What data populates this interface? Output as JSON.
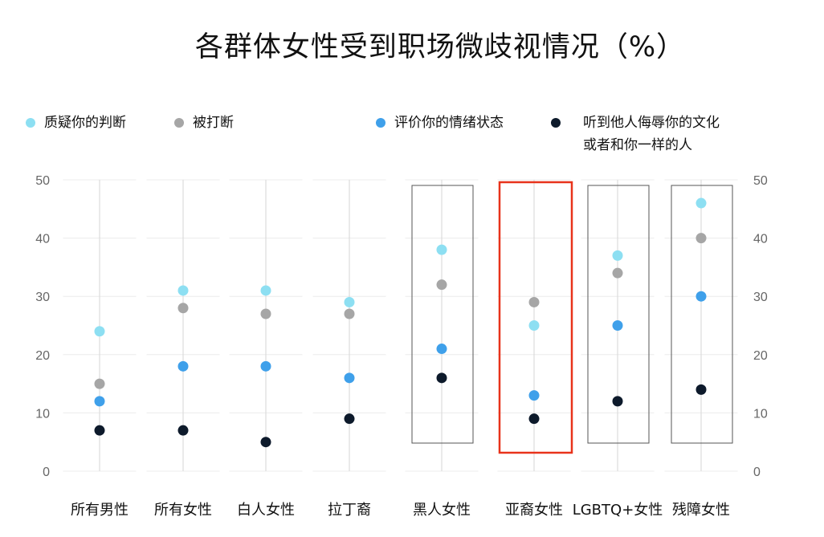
{
  "chart_data": {
    "type": "scatter",
    "title": "各群体女性受到职场微歧视情况（%）",
    "categories": [
      "所有男性",
      "所有女性",
      "白人女性",
      "拉丁裔",
      "黑人女性",
      "亚裔女性",
      "LGBTQ+女性",
      "残障女性"
    ],
    "ylim": [
      0,
      50
    ],
    "yticks": [
      0,
      10,
      20,
      30,
      40,
      50
    ],
    "grid": true,
    "legend_position": "top",
    "series": [
      {
        "name": "质疑你的判断",
        "color": "#8ddff2",
        "values": [
          24,
          31,
          31,
          29,
          38,
          25,
          37,
          46
        ]
      },
      {
        "name": "被打断",
        "color": "#a6a6a6",
        "values": [
          15,
          28,
          27,
          27,
          32,
          29,
          34,
          40
        ]
      },
      {
        "name": "评价你的情绪状态",
        "color": "#3fa0ea",
        "values": [
          12,
          18,
          18,
          16,
          21,
          13,
          25,
          30
        ]
      },
      {
        "name": "听到他人侮辱你的文化或者和你一样的人",
        "color": "#0d1a2b",
        "values": [
          7,
          7,
          5,
          9,
          16,
          9,
          12,
          14
        ]
      }
    ],
    "highlight_category": "亚裔女性",
    "highlight_color": "#e8331b",
    "boxed_categories": [
      "黑人女性",
      "亚裔女性",
      "LGBTQ+女性",
      "残障女性"
    ]
  },
  "legend": {
    "item1": "质疑你的判断",
    "item2": "被打断",
    "item3": "评价你的情绪状态",
    "item4_line1": "听到他人侮辱你的文化",
    "item4_line2": "或者和你一样的人"
  }
}
